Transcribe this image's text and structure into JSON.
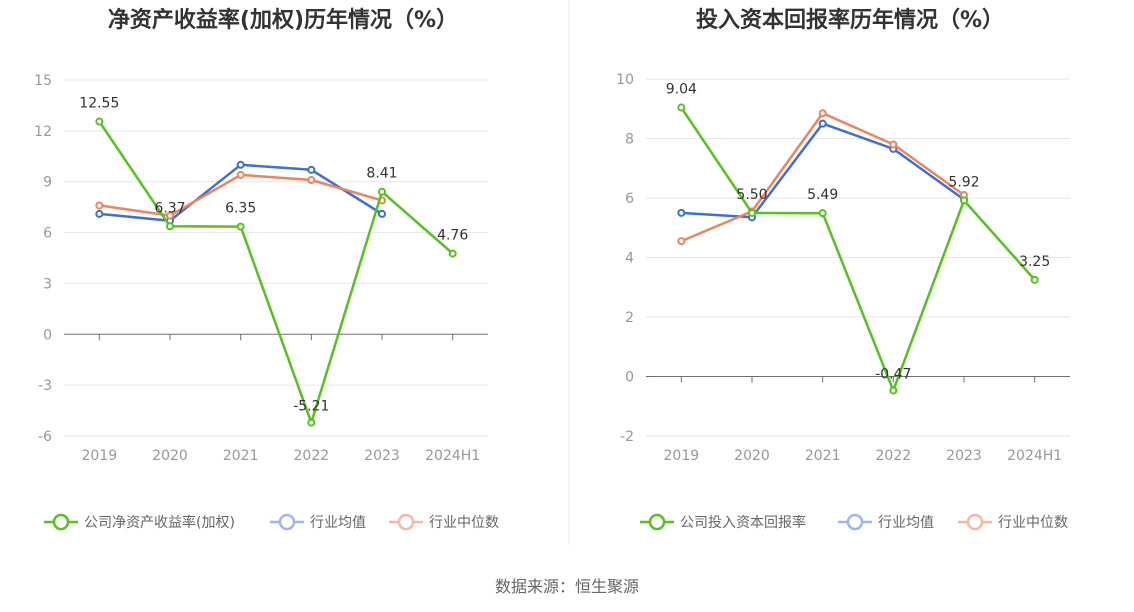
{
  "source_label": "数据来源：恒生聚源",
  "chart_data": [
    {
      "type": "line",
      "title": "净资产收益率(加权)历年情况（%）",
      "categories": [
        "2019",
        "2020",
        "2021",
        "2022",
        "2023",
        "2024H1"
      ],
      "ylim": [
        -6,
        15
      ],
      "yticks": [
        -6,
        -3,
        0,
        3,
        6,
        9,
        12,
        15
      ],
      "grid": true,
      "legend_position": "bottom",
      "series": [
        {
          "name": "公司净资产收益率(加权)",
          "color": "#52c41a",
          "values": [
            12.55,
            6.37,
            6.35,
            -5.21,
            8.41,
            4.76
          ],
          "labels": [
            "12.55",
            "6.37",
            "6.35",
            "-5.21",
            "8.41",
            "4.76"
          ]
        },
        {
          "name": "行业均值",
          "color": "#3c6fd8",
          "values": [
            7.1,
            6.7,
            10.0,
            9.7,
            7.1,
            null
          ]
        },
        {
          "name": "行业中位数",
          "color": "#f0835a",
          "values": [
            7.6,
            7.0,
            9.4,
            9.1,
            7.9,
            null
          ]
        }
      ]
    },
    {
      "type": "line",
      "title": "投入资本回报率历年情况（%）",
      "categories": [
        "2019",
        "2020",
        "2021",
        "2022",
        "2023",
        "2024H1"
      ],
      "ylim": [
        -2,
        10
      ],
      "yticks": [
        -2,
        0,
        2,
        4,
        6,
        8,
        10
      ],
      "grid": true,
      "legend_position": "bottom",
      "series": [
        {
          "name": "公司投入资本回报率",
          "color": "#52c41a",
          "values": [
            9.04,
            5.5,
            5.49,
            -0.47,
            5.92,
            3.25
          ],
          "labels": [
            "9.04",
            "5.50",
            "5.49",
            "-0.47",
            "5.92",
            "3.25"
          ]
        },
        {
          "name": "行业均值",
          "color": "#3c6fd8",
          "values": [
            5.5,
            5.35,
            8.5,
            7.65,
            5.95,
            null
          ]
        },
        {
          "name": "行业中位数",
          "color": "#f0835a",
          "values": [
            4.55,
            5.55,
            8.85,
            7.8,
            6.1,
            null
          ]
        }
      ]
    }
  ]
}
